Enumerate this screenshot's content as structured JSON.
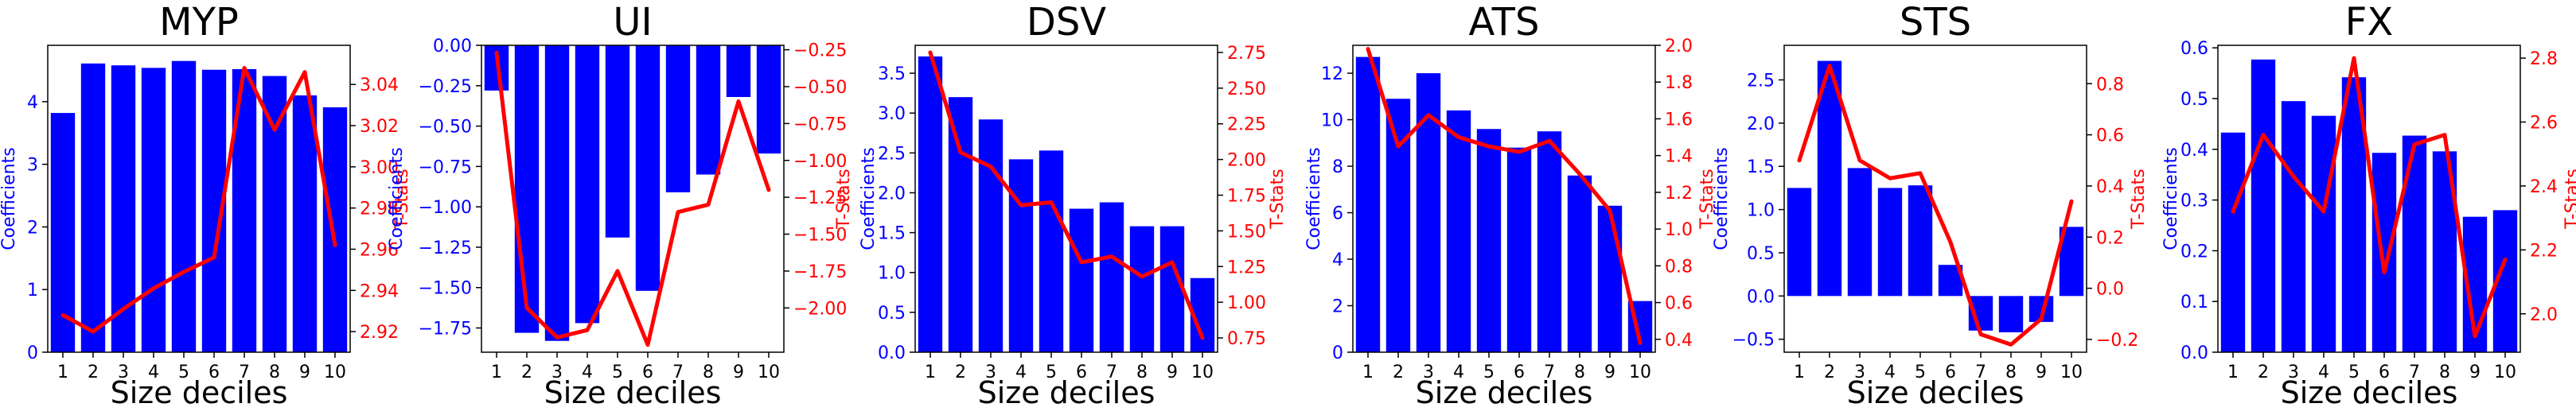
{
  "chart_data": [
    {
      "type": "bar",
      "title": "MYP",
      "xlabel": "Size deciles",
      "ylabel": "Coefficients",
      "y2label": "T-Stats",
      "categories": [
        "1",
        "2",
        "3",
        "4",
        "5",
        "6",
        "7",
        "8",
        "9",
        "10"
      ],
      "series": [
        {
          "name": "Coefficients",
          "kind": "bar",
          "axis": "left",
          "color": "#0000ff",
          "values": [
            3.82,
            4.61,
            4.58,
            4.54,
            4.65,
            4.51,
            4.52,
            4.41,
            4.1,
            3.91
          ]
        },
        {
          "name": "T-Stats",
          "kind": "line",
          "axis": "right",
          "color": "#ff0000",
          "values": [
            2.928,
            2.92,
            2.931,
            2.941,
            2.949,
            2.956,
            3.048,
            3.018,
            3.046,
            2.962
          ]
        }
      ],
      "ylim": [
        0,
        4.9
      ],
      "y2lim": [
        2.91,
        3.059
      ],
      "yticks": [
        0,
        1,
        2,
        3,
        4
      ],
      "y2ticks": [
        2.92,
        2.94,
        2.96,
        2.98,
        3.0,
        3.02,
        3.04
      ],
      "ytick_labels": [
        "0",
        "1",
        "2",
        "3",
        "4"
      ],
      "y2tick_labels": [
        "2.92",
        "2.94",
        "2.96",
        "2.98",
        "3.00",
        "3.02",
        "3.04"
      ]
    },
    {
      "type": "bar",
      "title": "UI",
      "xlabel": "Size deciles",
      "ylabel": "Coefficients",
      "y2label": "T-Stats",
      "categories": [
        "1",
        "2",
        "3",
        "4",
        "5",
        "6",
        "7",
        "8",
        "9",
        "10"
      ],
      "series": [
        {
          "name": "Coefficients",
          "kind": "bar",
          "axis": "left",
          "color": "#0000ff",
          "values": [
            -0.28,
            -1.78,
            -1.83,
            -1.72,
            -1.19,
            -1.52,
            -0.91,
            -0.8,
            -0.32,
            -0.67
          ]
        },
        {
          "name": "T-Stats",
          "kind": "line",
          "axis": "right",
          "color": "#ff0000",
          "values": [
            -0.27,
            -2.0,
            -2.2,
            -2.15,
            -1.75,
            -2.25,
            -1.35,
            -1.3,
            -0.6,
            -1.2
          ]
        }
      ],
      "ylim": [
        -1.9,
        0.0
      ],
      "y2lim": [
        -2.3,
        -0.22
      ],
      "yticks": [
        -1.75,
        -1.5,
        -1.25,
        -1.0,
        -0.75,
        -0.5,
        -0.25,
        0.0
      ],
      "y2ticks": [
        -2.0,
        -1.75,
        -1.5,
        -1.25,
        -1.0,
        -0.75,
        -0.5,
        -0.25
      ],
      "ytick_labels": [
        "−1.75",
        "−1.50",
        "−1.25",
        "−1.00",
        "−0.75",
        "−0.50",
        "−0.25",
        "0.00"
      ],
      "y2tick_labels": [
        "−2.00",
        "−1.75",
        "−1.50",
        "−1.25",
        "−1.00",
        "−0.75",
        "−0.50",
        "−0.25"
      ]
    },
    {
      "type": "bar",
      "title": "DSV",
      "xlabel": "Size deciles",
      "ylabel": "Coefficients",
      "y2label": "T-Stats",
      "categories": [
        "1",
        "2",
        "3",
        "4",
        "5",
        "6",
        "7",
        "8",
        "9",
        "10"
      ],
      "series": [
        {
          "name": "Coefficients",
          "kind": "bar",
          "axis": "left",
          "color": "#0000ff",
          "values": [
            3.71,
            3.2,
            2.92,
            2.42,
            2.53,
            1.8,
            1.88,
            1.58,
            1.58,
            0.93
          ]
        },
        {
          "name": "T-Stats",
          "kind": "line",
          "axis": "right",
          "color": "#ff0000",
          "values": [
            2.75,
            2.05,
            1.95,
            1.68,
            1.7,
            1.28,
            1.32,
            1.18,
            1.28,
            0.75
          ]
        }
      ],
      "ylim": [
        0,
        3.85
      ],
      "y2lim": [
        0.65,
        2.8
      ],
      "yticks": [
        0,
        0.5,
        1.0,
        1.5,
        2.0,
        2.5,
        3.0,
        3.5
      ],
      "y2ticks": [
        0.75,
        1.0,
        1.25,
        1.5,
        1.75,
        2.0,
        2.25,
        2.5,
        2.75
      ],
      "ytick_labels": [
        "0.0",
        "0.5",
        "1.0",
        "1.5",
        "2.0",
        "2.5",
        "3.0",
        "3.5"
      ],
      "y2tick_labels": [
        "0.75",
        "1.00",
        "1.25",
        "1.50",
        "1.75",
        "2.00",
        "2.25",
        "2.50",
        "2.75"
      ]
    },
    {
      "type": "bar",
      "title": "ATS",
      "xlabel": "Size deciles",
      "ylabel": "Coefficients",
      "y2label": "T-Stats",
      "categories": [
        "1",
        "2",
        "3",
        "4",
        "5",
        "6",
        "7",
        "8",
        "9",
        "10"
      ],
      "series": [
        {
          "name": "Coefficients",
          "kind": "bar",
          "axis": "left",
          "color": "#0000ff",
          "values": [
            12.7,
            10.9,
            12.0,
            10.4,
            9.6,
            8.8,
            9.5,
            7.6,
            6.3,
            2.2
          ]
        },
        {
          "name": "T-Stats",
          "kind": "line",
          "axis": "right",
          "color": "#ff0000",
          "values": [
            1.98,
            1.45,
            1.62,
            1.5,
            1.45,
            1.42,
            1.48,
            1.3,
            1.1,
            0.38
          ]
        }
      ],
      "ylim": [
        0,
        13.2
      ],
      "y2lim": [
        0.33,
        2.0
      ],
      "yticks": [
        0,
        2,
        4,
        6,
        8,
        10,
        12
      ],
      "y2ticks": [
        0.4,
        0.6,
        0.8,
        1.0,
        1.2,
        1.4,
        1.6,
        1.8,
        2.0
      ],
      "ytick_labels": [
        "0",
        "2",
        "4",
        "6",
        "8",
        "10",
        "12"
      ],
      "y2tick_labels": [
        "0.4",
        "0.6",
        "0.8",
        "1.0",
        "1.2",
        "1.4",
        "1.6",
        "1.8",
        "2.0"
      ]
    },
    {
      "type": "bar",
      "title": "STS",
      "xlabel": "Size deciles",
      "ylabel": "Coefficients",
      "y2label": "T-Stats",
      "categories": [
        "1",
        "2",
        "3",
        "4",
        "5",
        "6",
        "7",
        "8",
        "9",
        "10"
      ],
      "series": [
        {
          "name": "Coefficients",
          "kind": "bar",
          "axis": "left",
          "color": "#0000ff",
          "values": [
            1.25,
            2.72,
            1.48,
            1.25,
            1.28,
            0.36,
            -0.4,
            -0.42,
            -0.3,
            0.8
          ]
        },
        {
          "name": "T-Stats",
          "kind": "line",
          "axis": "right",
          "color": "#ff0000",
          "values": [
            0.5,
            0.87,
            0.5,
            0.43,
            0.45,
            0.18,
            -0.18,
            -0.22,
            -0.12,
            0.34
          ]
        }
      ],
      "ylim": [
        -0.65,
        2.9
      ],
      "y2lim": [
        -0.25,
        0.95
      ],
      "yticks": [
        -0.5,
        0.0,
        0.5,
        1.0,
        1.5,
        2.0,
        2.5
      ],
      "y2ticks": [
        -0.2,
        0.0,
        0.2,
        0.4,
        0.6,
        0.8
      ],
      "ytick_labels": [
        "−0.5",
        "0.0",
        "0.5",
        "1.0",
        "1.5",
        "2.0",
        "2.5"
      ],
      "y2tick_labels": [
        "−0.2",
        "0.0",
        "0.2",
        "0.4",
        "0.6",
        "0.8"
      ]
    },
    {
      "type": "bar",
      "title": "FX",
      "xlabel": "Size deciles",
      "ylabel": "Coefficients",
      "y2label": "T-Stats",
      "categories": [
        "1",
        "2",
        "3",
        "4",
        "5",
        "6",
        "7",
        "8",
        "9",
        "10"
      ],
      "series": [
        {
          "name": "Coefficients",
          "kind": "bar",
          "axis": "left",
          "color": "#0000ff",
          "values": [
            0.433,
            0.577,
            0.495,
            0.466,
            0.542,
            0.393,
            0.427,
            0.396,
            0.267,
            0.28
          ]
        },
        {
          "name": "T-Stats",
          "kind": "line",
          "axis": "right",
          "color": "#ff0000",
          "values": [
            2.32,
            2.56,
            2.43,
            2.32,
            2.8,
            2.13,
            2.53,
            2.56,
            1.93,
            2.17
          ]
        }
      ],
      "ylim": [
        0,
        0.605
      ],
      "y2lim": [
        1.88,
        2.84
      ],
      "yticks": [
        0,
        0.1,
        0.2,
        0.3,
        0.4,
        0.5,
        0.6
      ],
      "y2ticks": [
        2.0,
        2.2,
        2.4,
        2.6,
        2.8
      ],
      "ytick_labels": [
        "0.0",
        "0.1",
        "0.2",
        "0.3",
        "0.4",
        "0.5",
        "0.6"
      ],
      "y2tick_labels": [
        "2.0",
        "2.2",
        "2.4",
        "2.6",
        "2.8"
      ]
    }
  ]
}
